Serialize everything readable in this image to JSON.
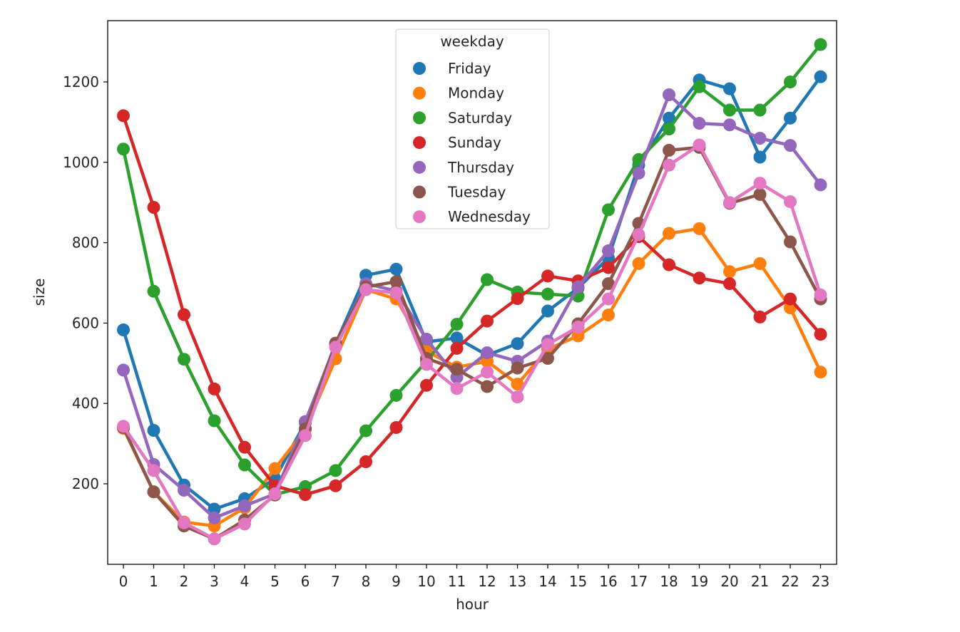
{
  "chart_data": {
    "type": "line",
    "xlabel": "hour",
    "ylabel": "size",
    "x": [
      0,
      1,
      2,
      3,
      4,
      5,
      6,
      7,
      8,
      9,
      10,
      11,
      12,
      13,
      14,
      15,
      16,
      17,
      18,
      19,
      20,
      21,
      22,
      23
    ],
    "x_tick_labels": [
      "0",
      "1",
      "2",
      "3",
      "4",
      "5",
      "6",
      "7",
      "8",
      "9",
      "10",
      "11",
      "12",
      "13",
      "14",
      "15",
      "16",
      "17",
      "18",
      "19",
      "20",
      "21",
      "22",
      "23"
    ],
    "y_ticks": [
      200,
      400,
      600,
      800,
      1000,
      1200
    ],
    "y_tick_labels": [
      "200",
      "400",
      "600",
      "800",
      "1000",
      "1200"
    ],
    "ylim": [
      0,
      1350
    ],
    "grid": false,
    "markers": "filled circles",
    "legend": {
      "title": "weekday",
      "placement": "top-center"
    },
    "series": [
      {
        "name": "Friday",
        "color": "#1f77b4",
        "values": [
          583,
          333,
          197,
          137,
          163,
          213,
          352,
          548,
          719,
          734,
          553,
          563,
          520,
          549,
          630,
          687,
          762,
          993,
          1110,
          1205,
          1183,
          1013,
          1110,
          1213
        ]
      },
      {
        "name": "Monday",
        "color": "#ff7f0e",
        "values": [
          338,
          180,
          105,
          95,
          140,
          238,
          335,
          511,
          683,
          660,
          530,
          490,
          505,
          448,
          535,
          568,
          620,
          748,
          823,
          835,
          728,
          748,
          638,
          478
        ]
      },
      {
        "name": "Saturday",
        "color": "#2ca02c",
        "values": [
          1033,
          679,
          510,
          357,
          247,
          173,
          193,
          233,
          332,
          420,
          505,
          597,
          708,
          677,
          672,
          667,
          882,
          1007,
          1083,
          1188,
          1130,
          1130,
          1200,
          1293
        ]
      },
      {
        "name": "Sunday",
        "color": "#d62728",
        "values": [
          1116,
          888,
          621,
          436,
          291,
          195,
          173,
          195,
          255,
          340,
          445,
          537,
          605,
          661,
          717,
          705,
          738,
          815,
          745,
          712,
          698,
          615,
          660,
          572
        ]
      },
      {
        "name": "Thursday",
        "color": "#9467bd",
        "values": [
          483,
          248,
          184,
          115,
          145,
          175,
          355,
          545,
          698,
          680,
          560,
          465,
          526,
          505,
          555,
          690,
          780,
          973,
          1168,
          1097,
          1093,
          1060,
          1042,
          944
        ]
      },
      {
        "name": "Tuesday",
        "color": "#8c564b",
        "values": [
          340,
          180,
          95,
          63,
          110,
          172,
          337,
          550,
          690,
          703,
          512,
          485,
          442,
          488,
          512,
          598,
          698,
          848,
          1030,
          1037,
          898,
          920,
          802,
          660
        ]
      },
      {
        "name": "Wednesday",
        "color": "#e377c2",
        "values": [
          343,
          233,
          103,
          63,
          100,
          175,
          320,
          540,
          683,
          675,
          497,
          437,
          478,
          416,
          547,
          590,
          660,
          820,
          993,
          1043,
          900,
          948,
          902,
          670
        ]
      }
    ]
  }
}
